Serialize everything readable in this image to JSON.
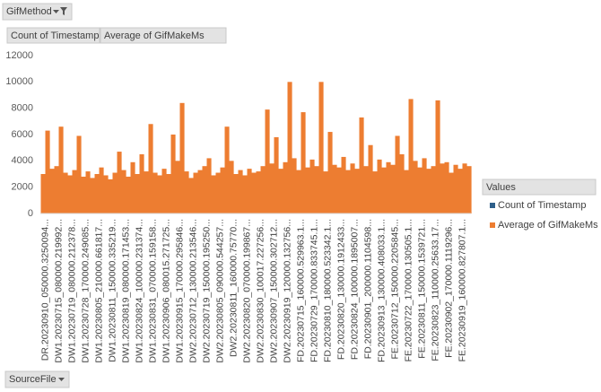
{
  "buttons": {
    "filter": "GifMethod",
    "value1": "Count of Timestamp",
    "value2": "Average of GifMakeMs",
    "axis": "SourceFile"
  },
  "chart_data": {
    "type": "bar",
    "legend_title": "Values",
    "legend": "right",
    "ylim": [
      0,
      12000
    ],
    "yticks": [
      0,
      2000,
      4000,
      6000,
      8000,
      10000,
      12000
    ],
    "grid": false,
    "categories": [
      "DR.20230910_050000.3250094...",
      null,
      null,
      "DW1.20230715_080000.219992...",
      null,
      null,
      "DW1.20230719_080000.212378...",
      null,
      null,
      "DW1.20230728_170000.249085...",
      null,
      null,
      "DW1.20230805_210000.661817...",
      null,
      null,
      "DW1.20230811_150000.335219...",
      null,
      null,
      "DW1.20230819_080000.171453...",
      null,
      null,
      "DW1.20230824_100000.231374...",
      null,
      null,
      "DW1.20230831_070000.159158...",
      null,
      null,
      "DW1.20230906_080015.271725...",
      null,
      null,
      "DW1.20230915_170000.295846...",
      null,
      null,
      "DW2.20230712_130000.213546...",
      null,
      null,
      "DW2.20230719_150000.195250...",
      null,
      null,
      "DW2.20230805_090000.544257...",
      null,
      null,
      "DW2.20230811_160000.75770...",
      null,
      null,
      "DW2.20230820_070000.199867...",
      null,
      null,
      "DW2.20230830_100017.227256...",
      null,
      null,
      "DW2.20230907_150000.302712...",
      null,
      null,
      "DW2.20230919_120000.132756...",
      null,
      null,
      "FD.20230715_160000.529963.1...",
      null,
      null,
      "FD.20230729_170000.833745.1...",
      null,
      null,
      "FD.20230810_180000.523342.1...",
      null,
      null,
      "FD.20230820_130000.1912433...",
      null,
      null,
      "FD.20230824_100000.1895007...",
      null,
      null,
      "FD.20230901_200000.1104598...",
      null,
      null,
      "FD.20230913_130000.408033.1...",
      null,
      null,
      "FE.20230712_150000.2205845...",
      null,
      null,
      "FE.20230722_170000.130505.1...",
      null,
      null,
      "FE.20230811_150000.1539721...",
      null,
      null,
      "FE.20230823_110000.25633.17...",
      null,
      null,
      "FE.20230902_170000.1119296...",
      null,
      null,
      "FE.20230919_160000.827807.1...",
      null,
      null
    ],
    "series": [
      {
        "name": "Count of Timestamp",
        "color": "#2e5f8a",
        "values": [
          1,
          1,
          1,
          1,
          1,
          1,
          1,
          1,
          1,
          1,
          1,
          1,
          1,
          1,
          1,
          1,
          1,
          1,
          1,
          1,
          1,
          1,
          1,
          1,
          1,
          1,
          1,
          1,
          1,
          1,
          1,
          1,
          1,
          1,
          1,
          1,
          1,
          1,
          1,
          1,
          1,
          1,
          1,
          1,
          1,
          1,
          1,
          1,
          1,
          1,
          1,
          1,
          1,
          1,
          1,
          1,
          1,
          1,
          1,
          1,
          1,
          1,
          1,
          1,
          1,
          1,
          1,
          1,
          1,
          1,
          1,
          1,
          1,
          1,
          1,
          1,
          1,
          1,
          1,
          1,
          1,
          1,
          1,
          1,
          1,
          1,
          1,
          1,
          1,
          1,
          1,
          1,
          1,
          1,
          1,
          1
        ]
      },
      {
        "name": "Average of GifMakeMs",
        "color": "#ed7d31",
        "values": [
          3000,
          6300,
          3400,
          3600,
          6600,
          3100,
          2900,
          3300,
          5900,
          2800,
          3200,
          2700,
          3000,
          3500,
          2900,
          2600,
          3100,
          4700,
          3300,
          2800,
          3900,
          3000,
          4500,
          3200,
          6800,
          3100,
          2900,
          3400,
          3000,
          6000,
          4000,
          8400,
          3200,
          2700,
          3100,
          3300,
          3600,
          4200,
          2900,
          3100,
          3500,
          6600,
          4000,
          3000,
          3300,
          2900,
          3400,
          3100,
          3200,
          3600,
          7900,
          3800,
          5800,
          3400,
          3900,
          10000,
          4200,
          3300,
          7700,
          3500,
          4100,
          3600,
          10000,
          3200,
          6200,
          3700,
          3500,
          4300,
          3300,
          3800,
          3400,
          7300,
          3600,
          5200,
          3200,
          4100,
          3500,
          3900,
          3700,
          5900,
          4500,
          3300,
          8700,
          4000,
          3500,
          4200,
          3400,
          3600,
          8600,
          3800,
          3900,
          3100,
          3700,
          3400,
          3800,
          3600
        ]
      }
    ]
  }
}
